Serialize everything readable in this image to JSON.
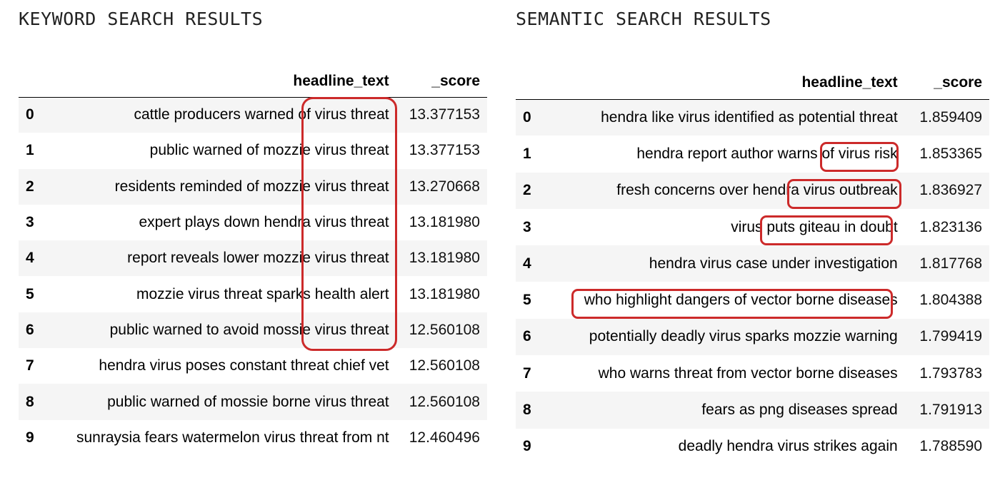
{
  "keyword_panel": {
    "title": "KEYWORD SEARCH RESULTS",
    "columns": [
      "",
      "headline_text",
      "_score"
    ],
    "rows": [
      {
        "index": "0",
        "headline": "cattle producers warned of virus threat",
        "score": "13.377153"
      },
      {
        "index": "1",
        "headline": "public warned of mozzie virus threat",
        "score": "13.377153"
      },
      {
        "index": "2",
        "headline": "residents reminded of mozzie virus threat",
        "score": "13.270668"
      },
      {
        "index": "3",
        "headline": "expert plays down hendra virus threat",
        "score": "13.181980"
      },
      {
        "index": "4",
        "headline": "report reveals lower mozzie virus threat",
        "score": "13.181980"
      },
      {
        "index": "5",
        "headline": "mozzie virus threat sparks health alert",
        "score": "13.181980"
      },
      {
        "index": "6",
        "headline": "public warned to avoid mossie virus threat",
        "score": "12.560108"
      },
      {
        "index": "7",
        "headline": "hendra virus poses constant threat chief vet",
        "score": "12.560108"
      },
      {
        "index": "8",
        "headline": "public warned of mossie borne virus threat",
        "score": "12.560108"
      },
      {
        "index": "9",
        "headline": "sunraysia fears watermelon virus threat from nt",
        "score": "12.460496"
      }
    ]
  },
  "semantic_panel": {
    "title": "SEMANTIC SEARCH RESULTS",
    "columns": [
      "",
      "headline_text",
      "_score"
    ],
    "rows": [
      {
        "index": "0",
        "headline": "hendra like virus identified as potential threat",
        "score": "1.859409"
      },
      {
        "index": "1",
        "headline": "hendra report author warns of virus risk",
        "score": "1.853365"
      },
      {
        "index": "2",
        "headline": "fresh concerns over hendra virus outbreak",
        "score": "1.836927"
      },
      {
        "index": "3",
        "headline": "virus puts giteau in doubt",
        "score": "1.823136"
      },
      {
        "index": "4",
        "headline": "hendra virus case under investigation",
        "score": "1.817768"
      },
      {
        "index": "5",
        "headline": "who highlight dangers of vector borne diseases",
        "score": "1.804388"
      },
      {
        "index": "6",
        "headline": "potentially deadly virus sparks mozzie warning",
        "score": "1.799419"
      },
      {
        "index": "7",
        "headline": "who warns threat from vector borne diseases",
        "score": "1.793783"
      },
      {
        "index": "8",
        "headline": "fears as png diseases spread",
        "score": "1.791913"
      },
      {
        "index": "9",
        "headline": "deadly hendra virus strikes again",
        "score": "1.788590"
      }
    ]
  },
  "colors": {
    "highlight": "#cc2a2a",
    "row_stripe": "#f5f5f5"
  }
}
